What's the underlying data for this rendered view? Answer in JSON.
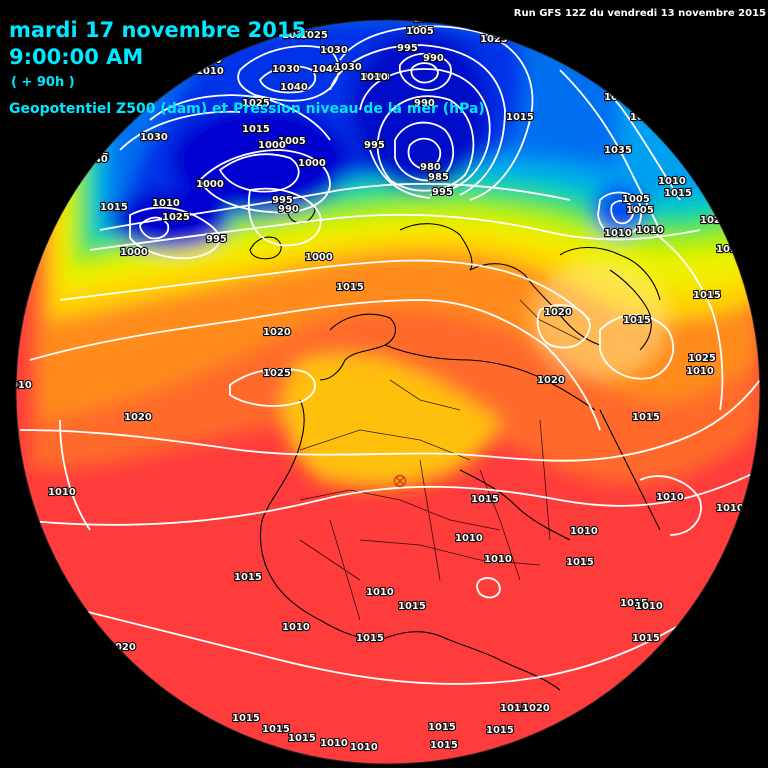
{
  "header": {
    "date": "mardi 17 novembre 2015",
    "time": "9:00:00 AM",
    "lead": "( + 90h )",
    "field": "Geopotentiel Z500 (dam) et Pression niveau de la mer (hPa)",
    "run": "Run GFS 12Z  du vendredi 13 novembre 2015"
  },
  "colors": {
    "background": "#000000",
    "title": "#00e8ff",
    "isobar": "#ffffff",
    "low_core": "#0000ff",
    "high_zone": "#ff3c3c"
  },
  "center_marker": {
    "name": "crossed-circle-icon",
    "color": "#d04010"
  },
  "isobars": {
    "labels": [
      "1015",
      "1015",
      "1020",
      "1030",
      "1025",
      "1030",
      "1030",
      "1010",
      "1005",
      "1035",
      "1040",
      "1030",
      "1030",
      "1010",
      "1040",
      "1020",
      "1025",
      "1015",
      "1030",
      "1005",
      "1000",
      "995",
      "990",
      "1010",
      "1015",
      "1025",
      "1000",
      "995",
      "990",
      "1000",
      "995",
      "995",
      "990",
      "980",
      "985",
      "995",
      "1000",
      "1005",
      "1010",
      "1000",
      "1015",
      "1015",
      "1005",
      "1010",
      "1015",
      "1025",
      "1015",
      "1035",
      "1025",
      "1015",
      "1020",
      "1015",
      "1020",
      "1025",
      "1020",
      "1010",
      "1010",
      "1020",
      "1015",
      "1010",
      "1015",
      "1010",
      "1010",
      "1010",
      "1010",
      "1015",
      "1015",
      "1010",
      "1015",
      "1015",
      "1010",
      "1010",
      "1015",
      "1015",
      "1020",
      "1015",
      "1020",
      "1015",
      "1015",
      "1015",
      "1015",
      "1015",
      "1010",
      "1010",
      "1015",
      "1010",
      "1025",
      "1025",
      "1010",
      "1010",
      "1015",
      "1020",
      "1025",
      "1035",
      "1010",
      "1040",
      "1015"
    ]
  }
}
